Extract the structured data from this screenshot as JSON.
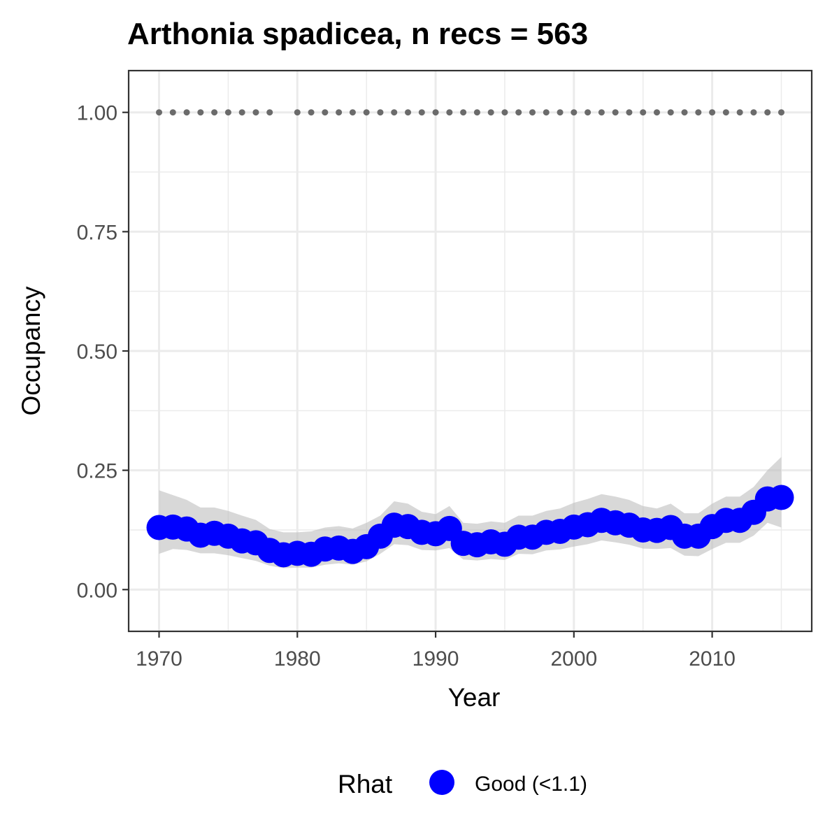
{
  "chart_data": {
    "type": "line",
    "title": "Arthonia spadicea, n recs = 563",
    "xlabel": "Year",
    "ylabel": "Occupancy",
    "xlim": [
      1967.8,
      1917.2
    ],
    "ylim": [
      -0.0875,
      1.0875
    ],
    "x_ticks": [
      1970,
      1980,
      1990,
      2000,
      2010
    ],
    "x_tick_labels": [
      "1970",
      "1980",
      "1990",
      "2000",
      "2010"
    ],
    "y_ticks": [
      0,
      0.25,
      0.5,
      0.75,
      1
    ],
    "y_tick_labels": [
      "0.00",
      "0.25",
      "0.50",
      "0.75",
      "1.00"
    ],
    "grid": true,
    "legend_position": "bottom",
    "legend": {
      "title": "Rhat",
      "entries": [
        {
          "label": "Good (<1.1)",
          "color": "#0000ff"
        }
      ]
    },
    "colors": {
      "points": "#0000ff",
      "ribbon": "#bebebe",
      "record_markers": "#6b6b6b",
      "grid": "#ebebeb",
      "panel_border": "#333333"
    },
    "series": [
      {
        "name": "Good (<1.1)",
        "x": [
          1970,
          1971,
          1972,
          1973,
          1974,
          1975,
          1976,
          1977,
          1978,
          1979,
          1980,
          1981,
          1982,
          1983,
          1984,
          1985,
          1986,
          1987,
          1988,
          1989,
          1990,
          1991,
          1992,
          1993,
          1994,
          1995,
          1996,
          1997,
          1998,
          1999,
          2000,
          2001,
          2002,
          2003,
          2004,
          2005,
          2006,
          2007,
          2008,
          2009,
          2010,
          2011,
          2012,
          2013,
          2014,
          2015
        ],
        "y": [
          0.13,
          0.131,
          0.127,
          0.114,
          0.118,
          0.112,
          0.102,
          0.098,
          0.082,
          0.073,
          0.076,
          0.074,
          0.085,
          0.087,
          0.08,
          0.09,
          0.112,
          0.135,
          0.132,
          0.12,
          0.117,
          0.128,
          0.097,
          0.094,
          0.1,
          0.095,
          0.11,
          0.11,
          0.12,
          0.122,
          0.131,
          0.136,
          0.145,
          0.14,
          0.135,
          0.125,
          0.124,
          0.13,
          0.112,
          0.112,
          0.132,
          0.145,
          0.145,
          0.162,
          0.19,
          0.193
        ],
        "lower": [
          0.075,
          0.085,
          0.083,
          0.076,
          0.076,
          0.072,
          0.066,
          0.06,
          0.05,
          0.045,
          0.046,
          0.046,
          0.052,
          0.055,
          0.052,
          0.059,
          0.075,
          0.095,
          0.093,
          0.083,
          0.082,
          0.087,
          0.063,
          0.061,
          0.064,
          0.062,
          0.075,
          0.074,
          0.082,
          0.084,
          0.09,
          0.095,
          0.103,
          0.099,
          0.094,
          0.086,
          0.085,
          0.087,
          0.071,
          0.07,
          0.085,
          0.098,
          0.098,
          0.113,
          0.14,
          0.13
        ],
        "upper": [
          0.208,
          0.198,
          0.188,
          0.172,
          0.172,
          0.165,
          0.155,
          0.146,
          0.127,
          0.12,
          0.12,
          0.122,
          0.13,
          0.133,
          0.128,
          0.14,
          0.155,
          0.185,
          0.18,
          0.163,
          0.158,
          0.175,
          0.14,
          0.138,
          0.143,
          0.14,
          0.155,
          0.155,
          0.165,
          0.17,
          0.182,
          0.19,
          0.2,
          0.195,
          0.188,
          0.175,
          0.17,
          0.18,
          0.16,
          0.16,
          0.18,
          0.195,
          0.195,
          0.215,
          0.25,
          0.278
        ]
      }
    ],
    "records": {
      "y": 1.0,
      "x": [
        1970,
        1971,
        1972,
        1973,
        1974,
        1975,
        1976,
        1977,
        1978,
        1980,
        1981,
        1982,
        1983,
        1984,
        1985,
        1986,
        1987,
        1988,
        1989,
        1990,
        1991,
        1992,
        1993,
        1994,
        1995,
        1996,
        1997,
        1998,
        1999,
        2000,
        2001,
        2002,
        2003,
        2004,
        2005,
        2006,
        2007,
        2008,
        2009,
        2010,
        2011,
        2012,
        2013,
        2014,
        2015
      ]
    }
  }
}
